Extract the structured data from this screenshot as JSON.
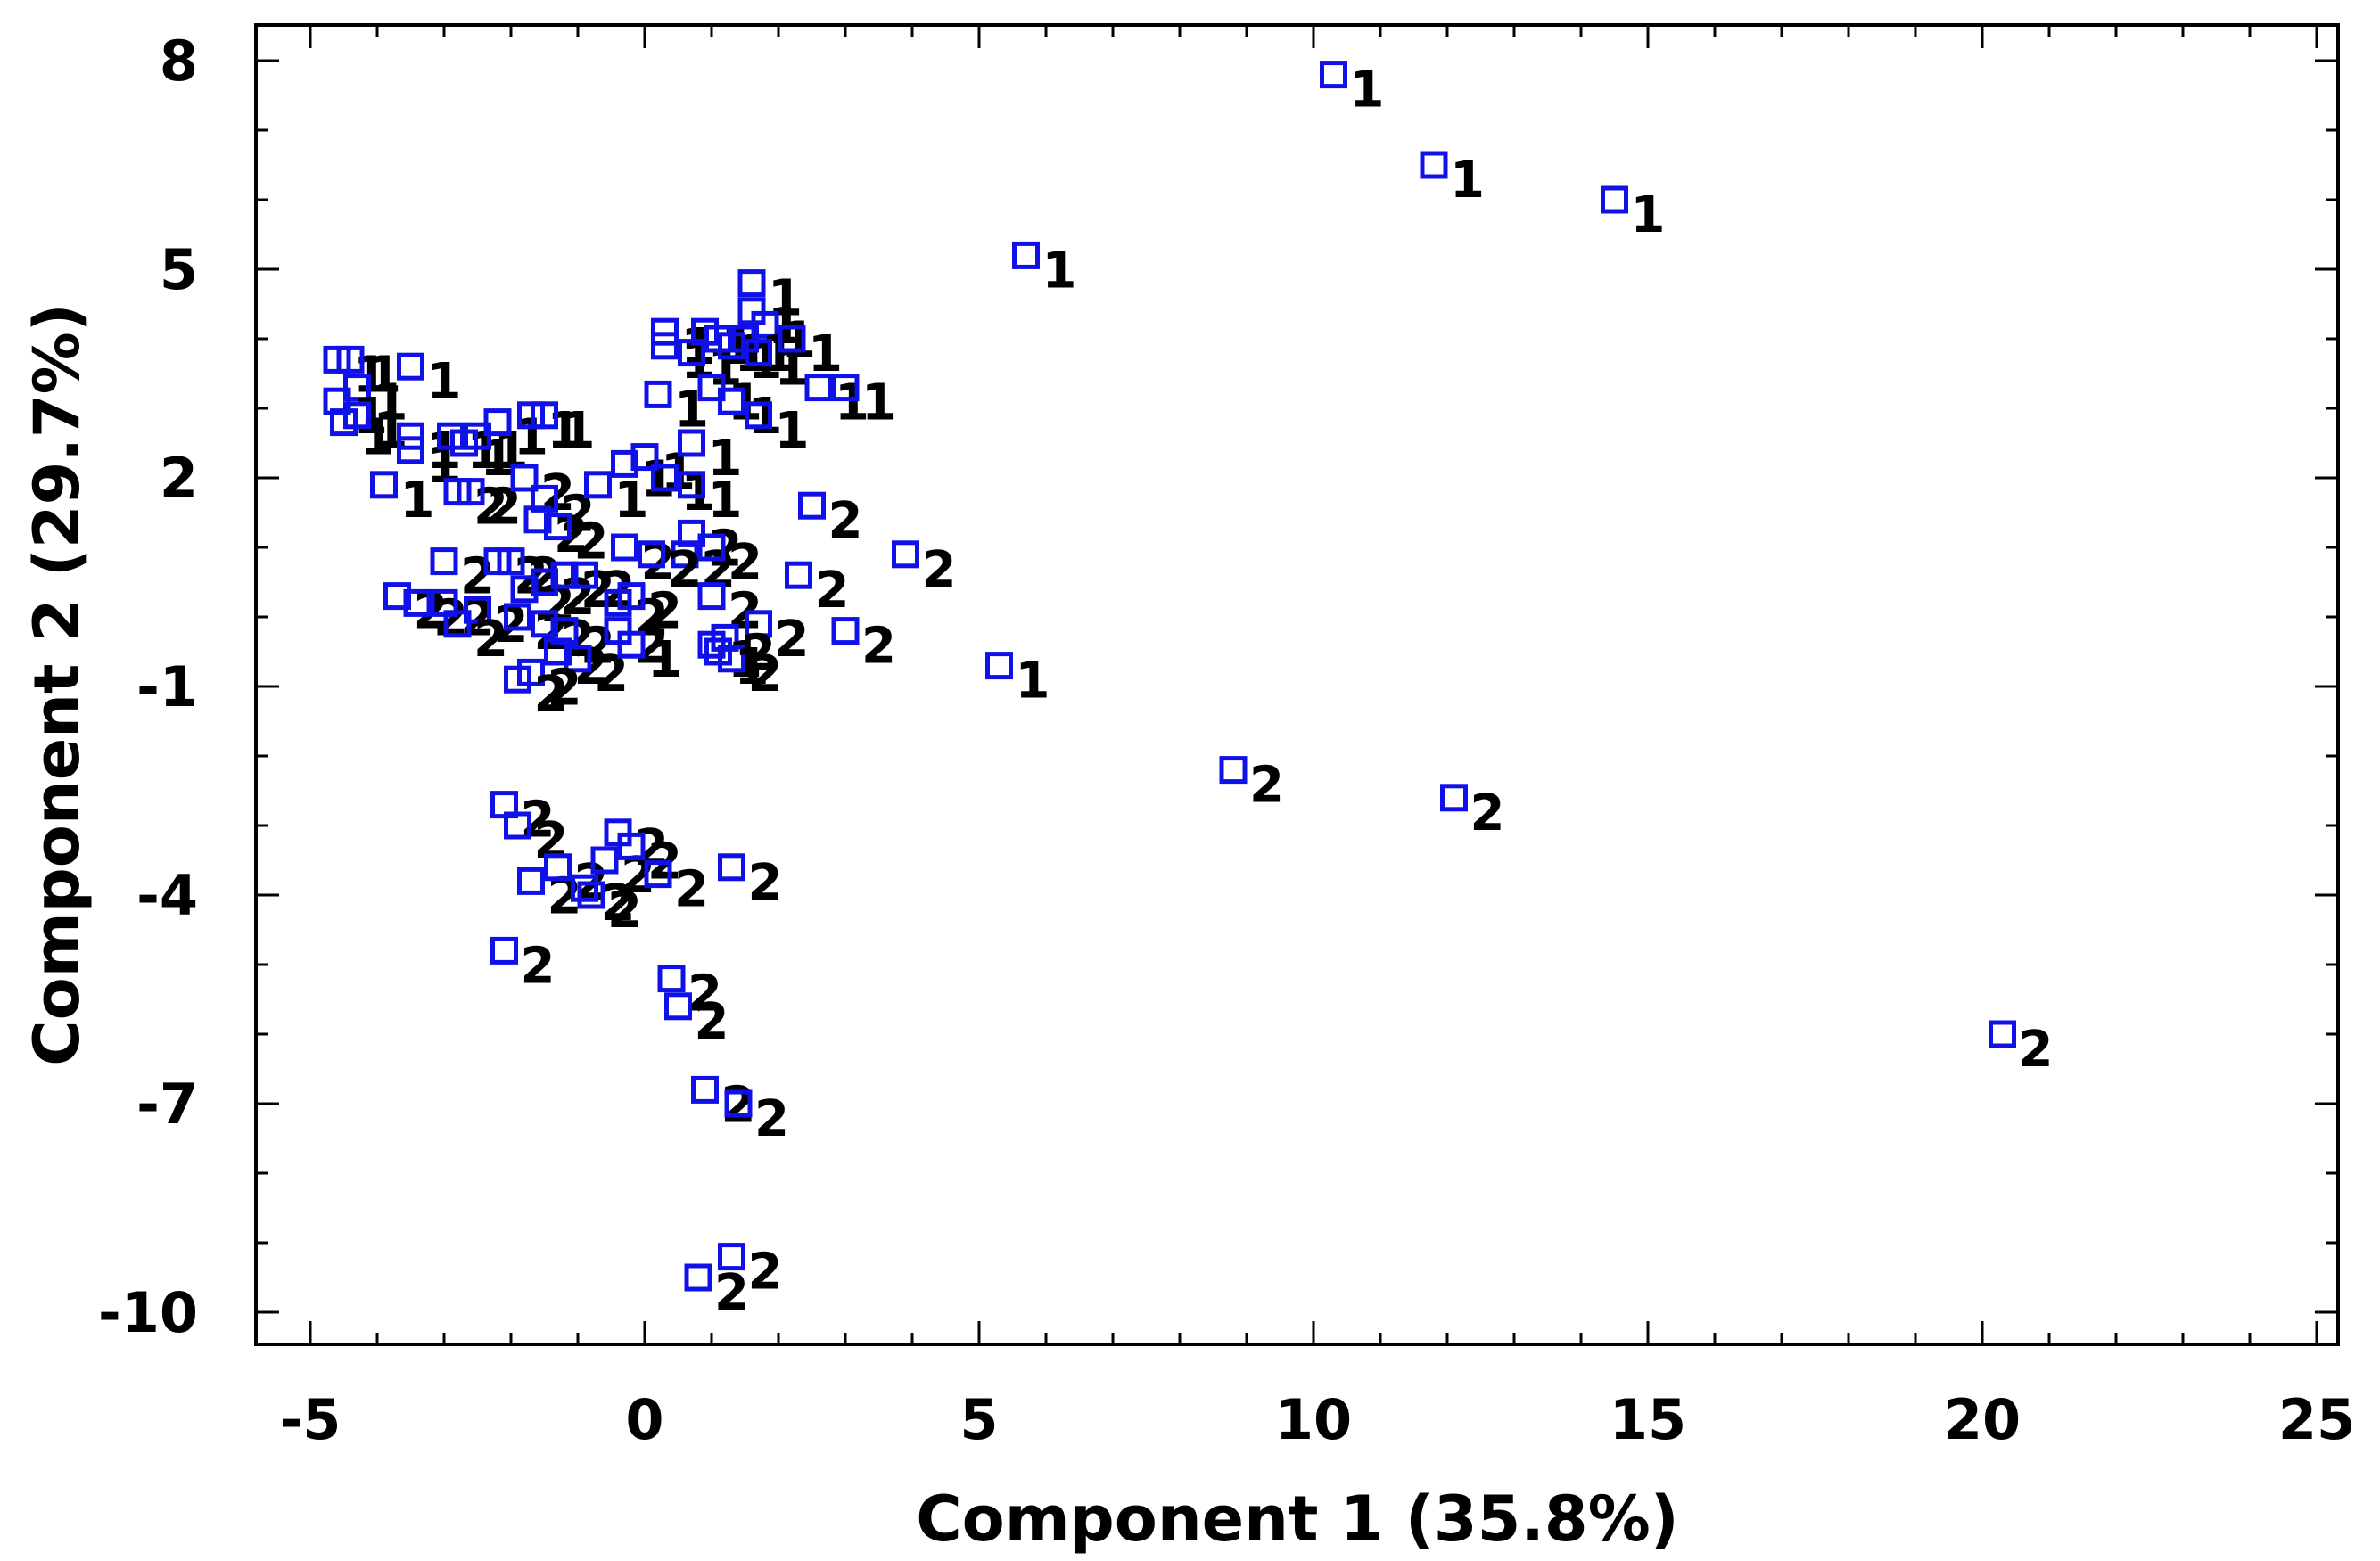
{
  "chart_data": {
    "type": "scatter",
    "xlabel": "Component 1 (35.8%)",
    "ylabel": "Component 2 (29.7%)",
    "xlim": [
      -5,
      25
    ],
    "ylim": [
      -10.5,
      9.5
    ],
    "xticks": [
      -5,
      0,
      5,
      10,
      15,
      20,
      25
    ],
    "yticks": [
      8,
      5,
      2,
      -1,
      -4,
      -7,
      -10
    ],
    "grid": false,
    "marker": "open-square",
    "marker_color": "#1010e8",
    "label_color": "#000000",
    "points": [
      {
        "x": 10.3,
        "y": 7.8,
        "label": "1"
      },
      {
        "x": 11.8,
        "y": 6.5,
        "label": "1"
      },
      {
        "x": 14.5,
        "y": 6.0,
        "label": "1"
      },
      {
        "x": 5.7,
        "y": 5.2,
        "label": "1"
      },
      {
        "x": 5.3,
        "y": -0.7,
        "label": "1"
      },
      {
        "x": 8.8,
        "y": -2.2,
        "label": "2"
      },
      {
        "x": 12.1,
        "y": -2.6,
        "label": "2"
      },
      {
        "x": 20.3,
        "y": -6.0,
        "label": "2"
      },
      {
        "x": -4.6,
        "y": 3.7,
        "label": "1"
      },
      {
        "x": -4.4,
        "y": 3.7,
        "label": "1"
      },
      {
        "x": -4.3,
        "y": 3.3,
        "label": "1"
      },
      {
        "x": -4.6,
        "y": 3.1,
        "label": "1"
      },
      {
        "x": -4.5,
        "y": 2.8,
        "label": "1"
      },
      {
        "x": -4.3,
        "y": 2.9,
        "label": "1"
      },
      {
        "x": -3.5,
        "y": 3.6,
        "label": "1"
      },
      {
        "x": -3.5,
        "y": 2.6,
        "label": "1"
      },
      {
        "x": -3.5,
        "y": 2.4,
        "label": "1"
      },
      {
        "x": -3.9,
        "y": 1.9,
        "label": "1"
      },
      {
        "x": -2.9,
        "y": 2.6,
        "label": "1"
      },
      {
        "x": -2.7,
        "y": 2.5,
        "label": "1"
      },
      {
        "x": -2.5,
        "y": 2.6,
        "label": "1"
      },
      {
        "x": -2.2,
        "y": 2.8,
        "label": "1"
      },
      {
        "x": -1.7,
        "y": 2.9,
        "label": "1"
      },
      {
        "x": -1.5,
        "y": 2.9,
        "label": "1"
      },
      {
        "x": -2.8,
        "y": 1.8,
        "label": "2"
      },
      {
        "x": -2.6,
        "y": 1.8,
        "label": "2"
      },
      {
        "x": -1.8,
        "y": 2.0,
        "label": "2"
      },
      {
        "x": -1.5,
        "y": 1.7,
        "label": "2"
      },
      {
        "x": -1.6,
        "y": 1.4,
        "label": "2"
      },
      {
        "x": -1.3,
        "y": 1.3,
        "label": "2"
      },
      {
        "x": -0.7,
        "y": 1.9,
        "label": "1"
      },
      {
        "x": -0.3,
        "y": 2.2,
        "label": "1"
      },
      {
        "x": 0.0,
        "y": 2.3,
        "label": "1"
      },
      {
        "x": 0.3,
        "y": 2.0,
        "label": "1"
      },
      {
        "x": 0.7,
        "y": 1.9,
        "label": "1"
      },
      {
        "x": 0.7,
        "y": 2.5,
        "label": "1"
      },
      {
        "x": 0.2,
        "y": 3.2,
        "label": "1"
      },
      {
        "x": 0.3,
        "y": 3.9,
        "label": "1"
      },
      {
        "x": 0.3,
        "y": 4.1,
        "label": "1"
      },
      {
        "x": 0.7,
        "y": 3.8,
        "label": "1"
      },
      {
        "x": 0.9,
        "y": 4.1,
        "label": "1"
      },
      {
        "x": 1.1,
        "y": 4.0,
        "label": "1"
      },
      {
        "x": 1.3,
        "y": 3.9,
        "label": "1"
      },
      {
        "x": 1.6,
        "y": 4.8,
        "label": "1"
      },
      {
        "x": 1.6,
        "y": 4.4,
        "label": "1"
      },
      {
        "x": 1.8,
        "y": 4.2,
        "label": "1"
      },
      {
        "x": 1.5,
        "y": 4.0,
        "label": "1"
      },
      {
        "x": 1.7,
        "y": 3.8,
        "label": "1"
      },
      {
        "x": 2.2,
        "y": 4.0,
        "label": "1"
      },
      {
        "x": 1.0,
        "y": 3.3,
        "label": "1"
      },
      {
        "x": 1.3,
        "y": 3.1,
        "label": "1"
      },
      {
        "x": 1.7,
        "y": 2.9,
        "label": "1"
      },
      {
        "x": 2.6,
        "y": 3.3,
        "label": "1"
      },
      {
        "x": 3.0,
        "y": 3.3,
        "label": "1"
      },
      {
        "x": 2.5,
        "y": 1.6,
        "label": "2"
      },
      {
        "x": 3.9,
        "y": 0.9,
        "label": "2"
      },
      {
        "x": 2.3,
        "y": 0.6,
        "label": "2"
      },
      {
        "x": 3.0,
        "y": -0.2,
        "label": "2"
      },
      {
        "x": 0.7,
        "y": 1.2,
        "label": "2"
      },
      {
        "x": 0.6,
        "y": 0.9,
        "label": "2"
      },
      {
        "x": 1.0,
        "y": 1.0,
        "label": "2"
      },
      {
        "x": -0.3,
        "y": 1.0,
        "label": "2"
      },
      {
        "x": 0.1,
        "y": 0.9,
        "label": "2"
      },
      {
        "x": 1.0,
        "y": 0.3,
        "label": "2"
      },
      {
        "x": 1.7,
        "y": -0.1,
        "label": "2"
      },
      {
        "x": 1.2,
        "y": -0.3,
        "label": "2"
      },
      {
        "x": 1.0,
        "y": -0.4,
        "label": "1"
      },
      {
        "x": 1.3,
        "y": -0.6,
        "label": "2"
      },
      {
        "x": -3.7,
        "y": 0.3,
        "label": "2"
      },
      {
        "x": -3.4,
        "y": 0.2,
        "label": "2"
      },
      {
        "x": -3.0,
        "y": 0.2,
        "label": "2"
      },
      {
        "x": -2.5,
        "y": 0.1,
        "label": "2"
      },
      {
        "x": -2.8,
        "y": -0.1,
        "label": "2"
      },
      {
        "x": -3.0,
        "y": 0.8,
        "label": "2"
      },
      {
        "x": -2.2,
        "y": 0.8,
        "label": "2"
      },
      {
        "x": -2.0,
        "y": 0.8,
        "label": "2"
      },
      {
        "x": -1.8,
        "y": 0.4,
        "label": "2"
      },
      {
        "x": -1.5,
        "y": 0.5,
        "label": "2"
      },
      {
        "x": -1.2,
        "y": 0.6,
        "label": "2"
      },
      {
        "x": -0.9,
        "y": 0.6,
        "label": "2"
      },
      {
        "x": -1.9,
        "y": 0.0,
        "label": "2"
      },
      {
        "x": -1.5,
        "y": -0.1,
        "label": "2"
      },
      {
        "x": -1.2,
        "y": -0.2,
        "label": "2"
      },
      {
        "x": -0.4,
        "y": 0.2,
        "label": "2"
      },
      {
        "x": -0.2,
        "y": 0.3,
        "label": "2"
      },
      {
        "x": -0.4,
        "y": -0.2,
        "label": "2"
      },
      {
        "x": -1.3,
        "y": -0.5,
        "label": "2"
      },
      {
        "x": -1.0,
        "y": -0.6,
        "label": "2"
      },
      {
        "x": -1.7,
        "y": -0.8,
        "label": "2"
      },
      {
        "x": -1.9,
        "y": -0.9,
        "label": "2"
      },
      {
        "x": -0.2,
        "y": -0.4,
        "label": "1"
      },
      {
        "x": 1.1,
        "y": -0.5,
        "label": "1"
      },
      {
        "x": -2.1,
        "y": -2.7,
        "label": "2"
      },
      {
        "x": -1.9,
        "y": -3.0,
        "label": "2"
      },
      {
        "x": -1.7,
        "y": -3.8,
        "label": "2"
      },
      {
        "x": -1.3,
        "y": -3.6,
        "label": "2"
      },
      {
        "x": -0.9,
        "y": -3.9,
        "label": "2"
      },
      {
        "x": -0.8,
        "y": -4.0,
        "label": "2"
      },
      {
        "x": -0.6,
        "y": -3.5,
        "label": "2"
      },
      {
        "x": -0.4,
        "y": -3.1,
        "label": "2"
      },
      {
        "x": -0.2,
        "y": -3.3,
        "label": "2"
      },
      {
        "x": 0.2,
        "y": -3.7,
        "label": "2"
      },
      {
        "x": 1.3,
        "y": -3.6,
        "label": "2"
      },
      {
        "x": -2.1,
        "y": -4.8,
        "label": "2"
      },
      {
        "x": 0.4,
        "y": -5.2,
        "label": "2"
      },
      {
        "x": 0.5,
        "y": -5.6,
        "label": "2"
      },
      {
        "x": 0.9,
        "y": -6.8,
        "label": "2"
      },
      {
        "x": 1.4,
        "y": -7.0,
        "label": "2"
      },
      {
        "x": 1.3,
        "y": -9.2,
        "label": "2"
      },
      {
        "x": 0.8,
        "y": -9.5,
        "label": "2"
      }
    ]
  }
}
